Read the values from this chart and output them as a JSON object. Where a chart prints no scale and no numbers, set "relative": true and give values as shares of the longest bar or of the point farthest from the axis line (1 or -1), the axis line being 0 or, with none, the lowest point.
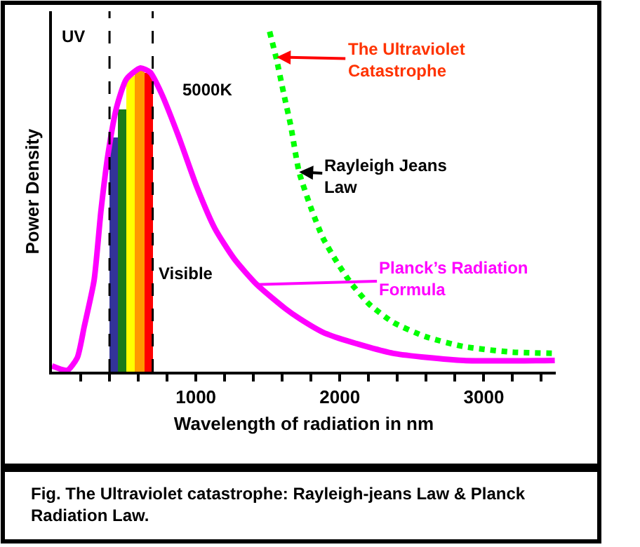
{
  "chart_data": {
    "type": "line",
    "relative": true,
    "xlabel": "Wavelength of radiation in nm",
    "ylabel": "Power Density",
    "xlim": [
      0,
      3500
    ],
    "xticks": [
      {
        "value": 200,
        "label": null
      },
      {
        "value": 400,
        "label": null
      },
      {
        "value": 600,
        "label": null
      },
      {
        "value": 800,
        "label": null
      },
      1000,
      {
        "value": 1200,
        "label": null
      },
      {
        "value": 1400,
        "label": null
      },
      {
        "value": 1600,
        "label": null
      },
      {
        "value": 1800,
        "label": null
      },
      2000,
      {
        "value": 2200,
        "label": null
      },
      {
        "value": 2400,
        "label": null
      },
      {
        "value": 2600,
        "label": null
      },
      {
        "value": 2800,
        "label": null
      },
      3000,
      {
        "value": 3200,
        "label": null
      },
      {
        "value": 3400,
        "label": null
      }
    ],
    "legend": false,
    "marker": "none",
    "series": [
      {
        "type": "bar",
        "x": [
          430,
          490,
          550,
          610,
          670
        ],
        "values": [
          0.69,
          0.77,
          0.87,
          0.89,
          0.88
        ],
        "colors": [
          "#333399",
          "#1a7a1a",
          "#ffff00",
          "#ff9900",
          "#ff0000"
        ]
      },
      {
        "name": "Planck’s Radiation Formula",
        "color": "#ff00ff",
        "line_style": "solid",
        "x": [
          0,
          107,
          176,
          224,
          293,
          341,
          390,
          449,
          517,
          615,
          683,
          761,
          878,
          1005,
          1132,
          1268,
          1424,
          1620,
          1717,
          1883,
          2049,
          2371,
          2859,
          3493
        ],
        "values": [
          0.017,
          0.004,
          0.041,
          0.132,
          0.269,
          0.475,
          0.64,
          0.777,
          0.86,
          0.893,
          0.88,
          0.818,
          0.694,
          0.545,
          0.421,
          0.331,
          0.256,
          0.186,
          0.157,
          0.116,
          0.091,
          0.054,
          0.033,
          0.033
        ]
      },
      {
        "name": "Rayleigh Jeans Law",
        "color": "#00ff00",
        "line_style": "dotted",
        "x": [
          1512,
          1561,
          1610,
          1659,
          1717,
          1805,
          1883,
          1980,
          2078,
          2205,
          2371,
          2595,
          2859,
          3180,
          3493
        ],
        "values": [
          1,
          0.917,
          0.818,
          0.723,
          0.587,
          0.475,
          0.393,
          0.322,
          0.26,
          0.198,
          0.145,
          0.103,
          0.074,
          0.058,
          0.054
        ]
      }
    ],
    "ref_lines": [
      {
        "axis": "x",
        "value": 400,
        "color": "#000000",
        "line_style": "dashed"
      },
      {
        "axis": "x",
        "value": 700,
        "color": "#000000",
        "line_style": "dashed"
      }
    ],
    "annotations": [
      "UV",
      "5000K",
      "Visible",
      "Fig. The Ultraviolet catastrophe: Rayleigh-jeans Law & Planck Radiation Law.",
      {
        "text": "The Ultraviolet Catastrophe",
        "x": 1561,
        "y": 0.925
      }
    ]
  }
}
